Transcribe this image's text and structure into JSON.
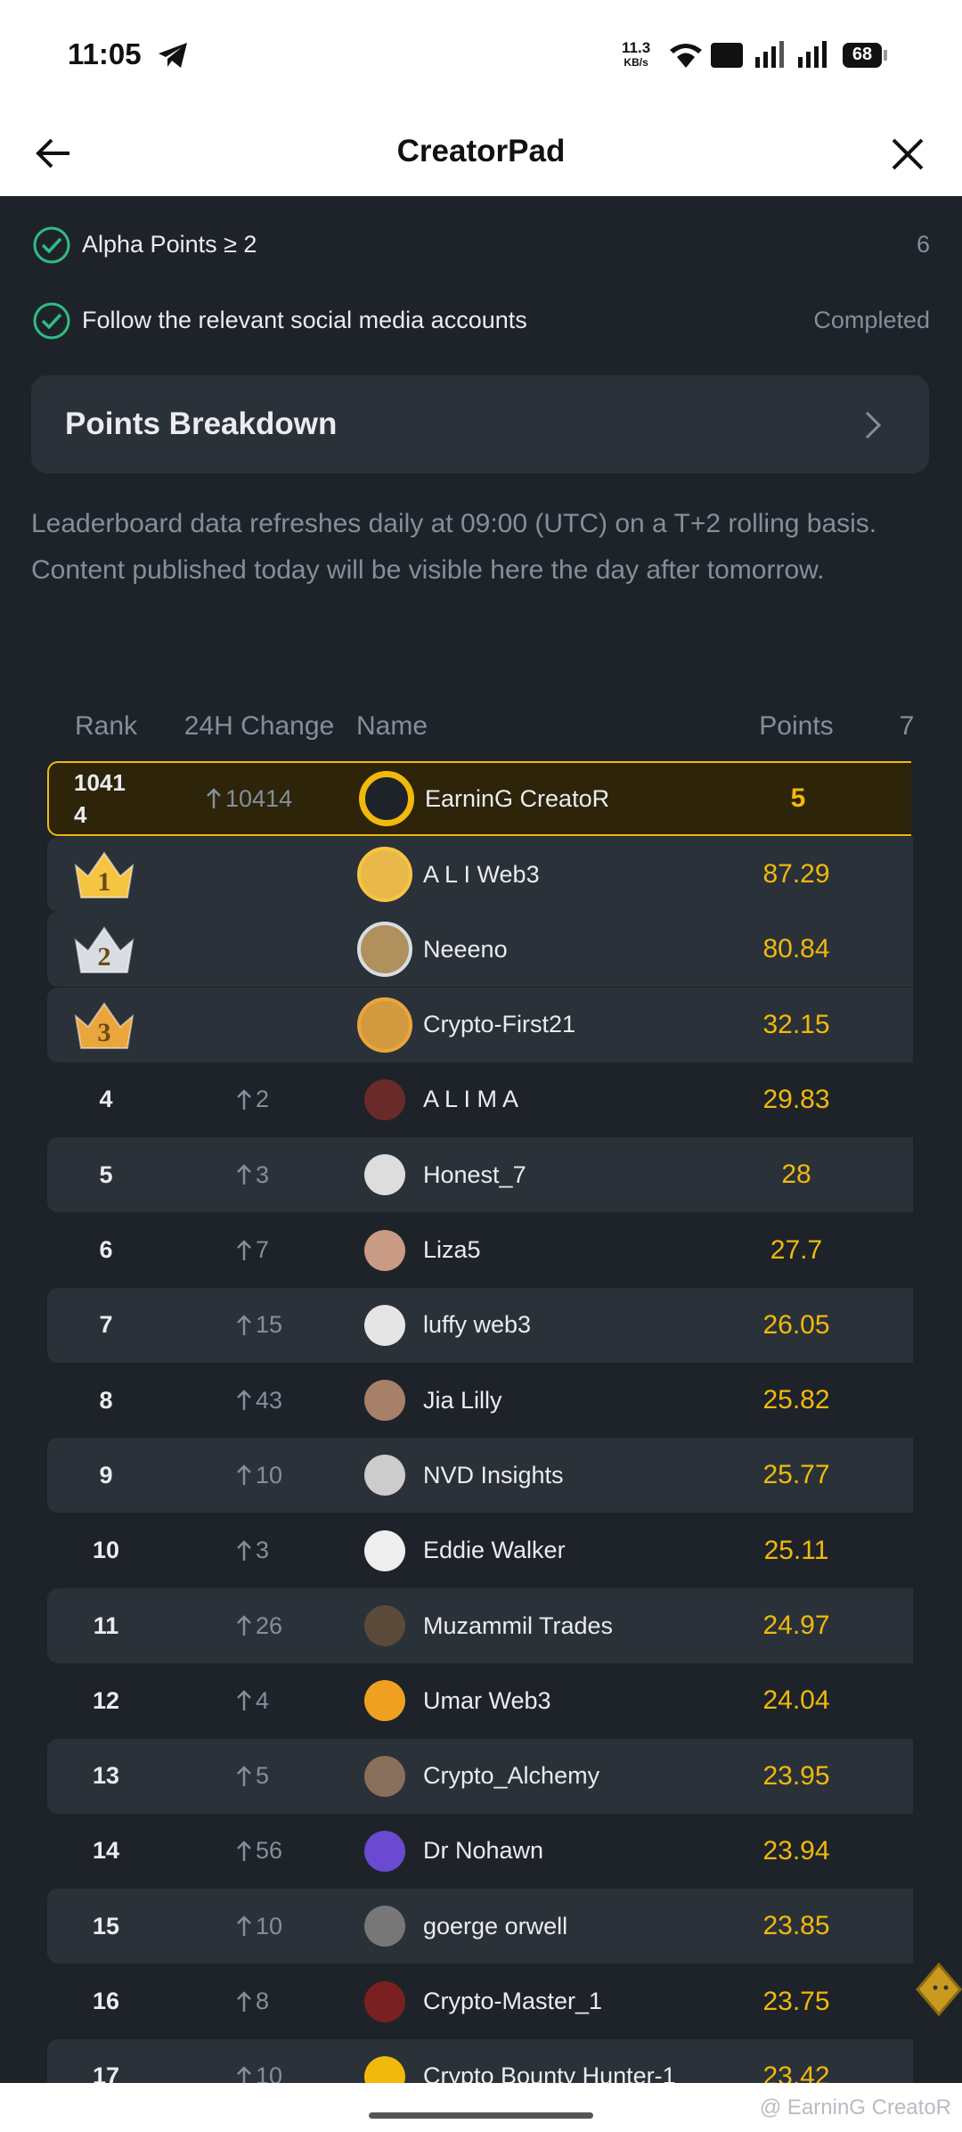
{
  "status_bar": {
    "time": "11:05",
    "net_speed": "11.3",
    "net_unit": "KB/s",
    "battery": "68"
  },
  "header": {
    "title": "CreatorPad"
  },
  "requirements": [
    {
      "label": "Alpha Points ≥ 2",
      "status": "6"
    },
    {
      "label": "Follow the relevant social media accounts",
      "status": "Completed"
    }
  ],
  "points_breakdown": {
    "title": "Points Breakdown"
  },
  "notice": "Leaderboard data refreshes daily at 09:00 (UTC) on a T+2 rolling basis. Content published today will be visible here the day after tomorrow.",
  "leaderboard": {
    "columns": [
      "Rank",
      "24H Change",
      "Name",
      "Points",
      "7"
    ],
    "my_row": {
      "rank": 10414,
      "change": 10414,
      "name": "EarninG CreatoR",
      "points": 5
    },
    "rows": [
      {
        "rank": 1,
        "name": "A L I Web3",
        "points": 87.29
      },
      {
        "rank": 2,
        "name": "Neeeno",
        "points": 80.84
      },
      {
        "rank": 3,
        "name": "Crypto-First21",
        "points": 32.15
      },
      {
        "rank": 4,
        "change": 2,
        "name": "A L I M A",
        "points": 29.83
      },
      {
        "rank": 5,
        "change": 3,
        "name": "Honest_7",
        "points": 28
      },
      {
        "rank": 6,
        "change": 7,
        "name": "Liza5",
        "points": 27.7
      },
      {
        "rank": 7,
        "change": 15,
        "name": "luffy web3",
        "points": 26.05
      },
      {
        "rank": 8,
        "change": 43,
        "name": "Jia Lilly",
        "points": 25.82
      },
      {
        "rank": 9,
        "change": 10,
        "name": "NVD Insights",
        "points": 25.77
      },
      {
        "rank": 10,
        "change": 3,
        "name": "Eddie Walker",
        "points": 25.11
      },
      {
        "rank": 11,
        "change": 26,
        "name": "Muzammil Trades",
        "points": 24.97
      },
      {
        "rank": 12,
        "change": 4,
        "name": "Umar Web3",
        "points": 24.04
      },
      {
        "rank": 13,
        "change": 5,
        "name": "Crypto_Alchemy",
        "points": 23.95
      },
      {
        "rank": 14,
        "change": 56,
        "name": "Dr Nohawn",
        "points": 23.94
      },
      {
        "rank": 15,
        "change": 10,
        "name": "goerge orwell",
        "points": 23.85
      },
      {
        "rank": 16,
        "change": 8,
        "name": "Crypto-Master_1",
        "points": 23.75
      },
      {
        "rank": 17,
        "change": 10,
        "name": "Crypto Bounty Hunter-1",
        "points": 23.42
      }
    ]
  },
  "watermark": "@ EarninG CreatoR"
}
